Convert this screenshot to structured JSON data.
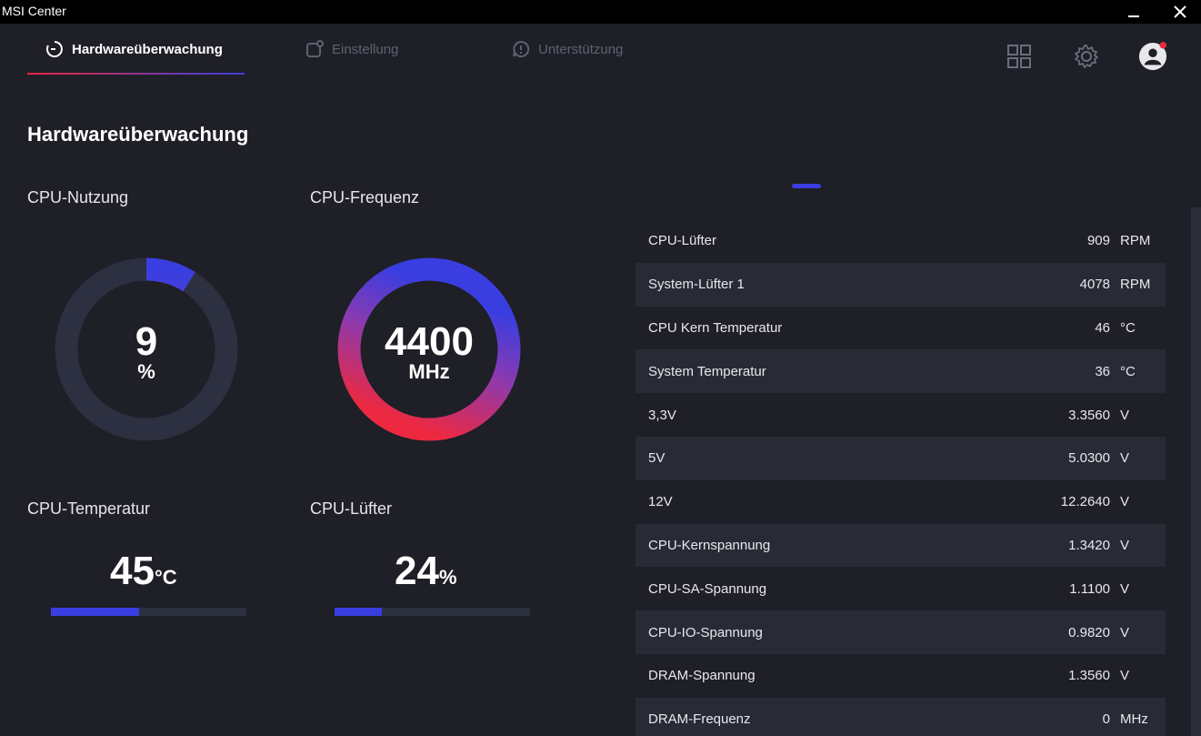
{
  "window": {
    "title": "MSI Center"
  },
  "nav": {
    "tabs": [
      {
        "label": "Hardwareüberwachung",
        "active": true
      },
      {
        "label": "Einstellung",
        "active": false
      },
      {
        "label": "Unterstützung",
        "active": false
      }
    ],
    "icons": [
      "grid-icon",
      "gear-icon",
      "user-avatar-icon"
    ],
    "notification_dot_color": "#e8283c"
  },
  "page": {
    "title": "Hardwareüberwachung"
  },
  "tiles": {
    "cpu_usage": {
      "label": "CPU-Nutzung",
      "value": "9",
      "unit": "%",
      "fraction": 0.09
    },
    "cpu_freq": {
      "label": "CPU-Frequenz",
      "value": "4400",
      "unit": "MHz",
      "fraction": 1.0
    },
    "cpu_temp": {
      "label": "CPU-Temperatur",
      "value": "45",
      "unit": "°C",
      "fraction": 0.45
    },
    "cpu_fan": {
      "label": "CPU-Lüfter",
      "value": "24",
      "unit": "%",
      "fraction": 0.24
    }
  },
  "colors": {
    "accent_red": "#e8283c",
    "accent_blue": "#3a3ee0",
    "background": "#1e1f27",
    "row_alt": "#282b36"
  },
  "sensors": [
    {
      "name": "CPU-Lüfter",
      "value": "909",
      "unit": "RPM"
    },
    {
      "name": "System-Lüfter 1",
      "value": "4078",
      "unit": "RPM"
    },
    {
      "name": "CPU Kern Temperatur",
      "value": "46",
      "unit": "°C"
    },
    {
      "name": "System Temperatur",
      "value": "36",
      "unit": "°C"
    },
    {
      "name": "3,3V",
      "value": "3.3560",
      "unit": "V"
    },
    {
      "name": "5V",
      "value": "5.0300",
      "unit": "V"
    },
    {
      "name": "12V",
      "value": "12.2640",
      "unit": "V"
    },
    {
      "name": "CPU-Kernspannung",
      "value": "1.3420",
      "unit": "V"
    },
    {
      "name": "CPU-SA-Spannung",
      "value": "1.1100",
      "unit": "V"
    },
    {
      "name": "CPU-IO-Spannung",
      "value": "0.9820",
      "unit": "V"
    },
    {
      "name": "DRAM-Spannung",
      "value": "1.3560",
      "unit": "V"
    },
    {
      "name": "DRAM-Frequenz",
      "value": "0",
      "unit": "MHz"
    }
  ]
}
